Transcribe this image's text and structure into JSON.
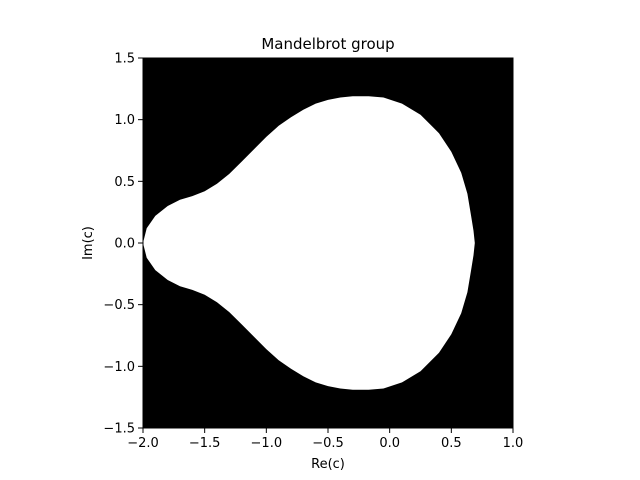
{
  "chart_data": {
    "type": "heatmap",
    "title": "Mandelbrot group",
    "xlabel": "Re(c)",
    "ylabel": "Im(c)",
    "xlim": [
      -2.0,
      1.0
    ],
    "ylim": [
      -1.5,
      1.5
    ],
    "xticks": [
      -2.0,
      -1.5,
      -1.0,
      -0.5,
      0.0,
      0.5,
      1.0
    ],
    "yticks": [
      -1.5,
      -1.0,
      -0.5,
      0.0,
      0.5,
      1.0,
      1.5
    ],
    "xtick_labels": [
      "−2.0",
      "−1.5",
      "−1.0",
      "−0.5",
      "0.0",
      "0.5",
      "1.0"
    ],
    "ytick_labels": [
      "−1.5",
      "−1.0",
      "−0.5",
      "0.0",
      "0.5",
      "1.0",
      "1.5"
    ],
    "grid": false,
    "colors": {
      "outside": "#000000",
      "inside": "#ffffff"
    },
    "region_boundary_upper": [
      [
        -2.0,
        0.0
      ],
      [
        -1.97,
        0.12
      ],
      [
        -1.9,
        0.22
      ],
      [
        -1.8,
        0.3
      ],
      [
        -1.7,
        0.35
      ],
      [
        -1.6,
        0.38
      ],
      [
        -1.5,
        0.42
      ],
      [
        -1.4,
        0.48
      ],
      [
        -1.3,
        0.56
      ],
      [
        -1.2,
        0.66
      ],
      [
        -1.1,
        0.76
      ],
      [
        -1.0,
        0.86
      ],
      [
        -0.9,
        0.95
      ],
      [
        -0.8,
        1.02
      ],
      [
        -0.7,
        1.08
      ],
      [
        -0.6,
        1.13
      ],
      [
        -0.5,
        1.16
      ],
      [
        -0.4,
        1.18
      ],
      [
        -0.3,
        1.19
      ],
      [
        -0.17,
        1.19
      ],
      [
        -0.05,
        1.18
      ],
      [
        0.1,
        1.13
      ],
      [
        0.25,
        1.04
      ],
      [
        0.4,
        0.89
      ],
      [
        0.5,
        0.74
      ],
      [
        0.58,
        0.57
      ],
      [
        0.63,
        0.4
      ],
      [
        0.66,
        0.22
      ],
      [
        0.68,
        0.1
      ],
      [
        0.69,
        0.0
      ]
    ]
  }
}
